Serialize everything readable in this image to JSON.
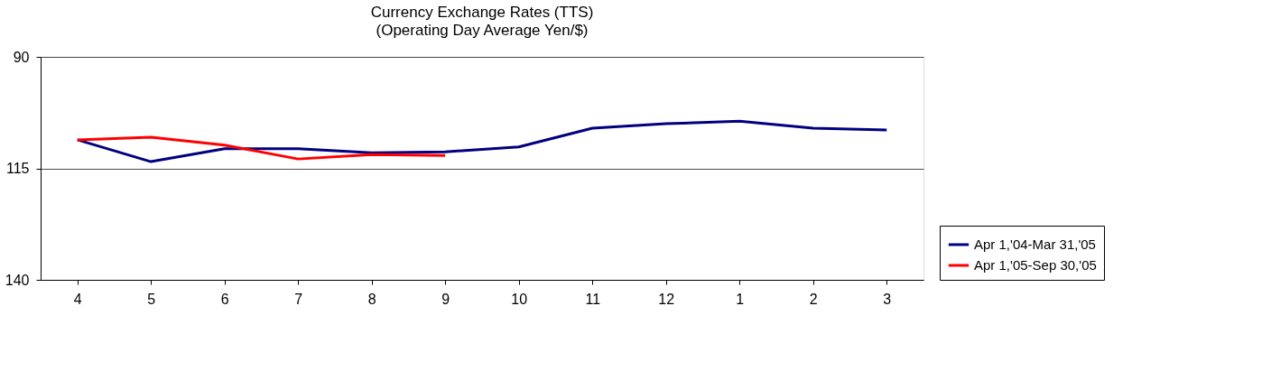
{
  "chart_data": {
    "type": "line",
    "title": "Currency Exchange Rates (TTS)",
    "subtitle": "(Operating Day Average Yen/$)",
    "categories": [
      "4",
      "5",
      "6",
      "7",
      "8",
      "9",
      "10",
      "11",
      "12",
      "1",
      "2",
      "3"
    ],
    "series": [
      {
        "name": "Apr 1,'04-Mar 31,'05",
        "color": "#000080",
        "values": [
          108.6,
          113.5,
          110.6,
          110.6,
          111.5,
          111.3,
          110.2,
          106.0,
          105.0,
          104.4,
          106.0,
          106.4
        ]
      },
      {
        "name": "Apr 1,'05-Sep 30,'05",
        "color": "#ff0000",
        "values": [
          108.6,
          108.0,
          109.8,
          112.9,
          111.9,
          112.1,
          null,
          null,
          null,
          null,
          null,
          null
        ]
      }
    ],
    "ylim": [
      140,
      90
    ],
    "yticks": [
      90,
      115,
      140
    ],
    "grid": "y",
    "legend": "bottom right",
    "marker": "none",
    "line_style": "solid"
  }
}
